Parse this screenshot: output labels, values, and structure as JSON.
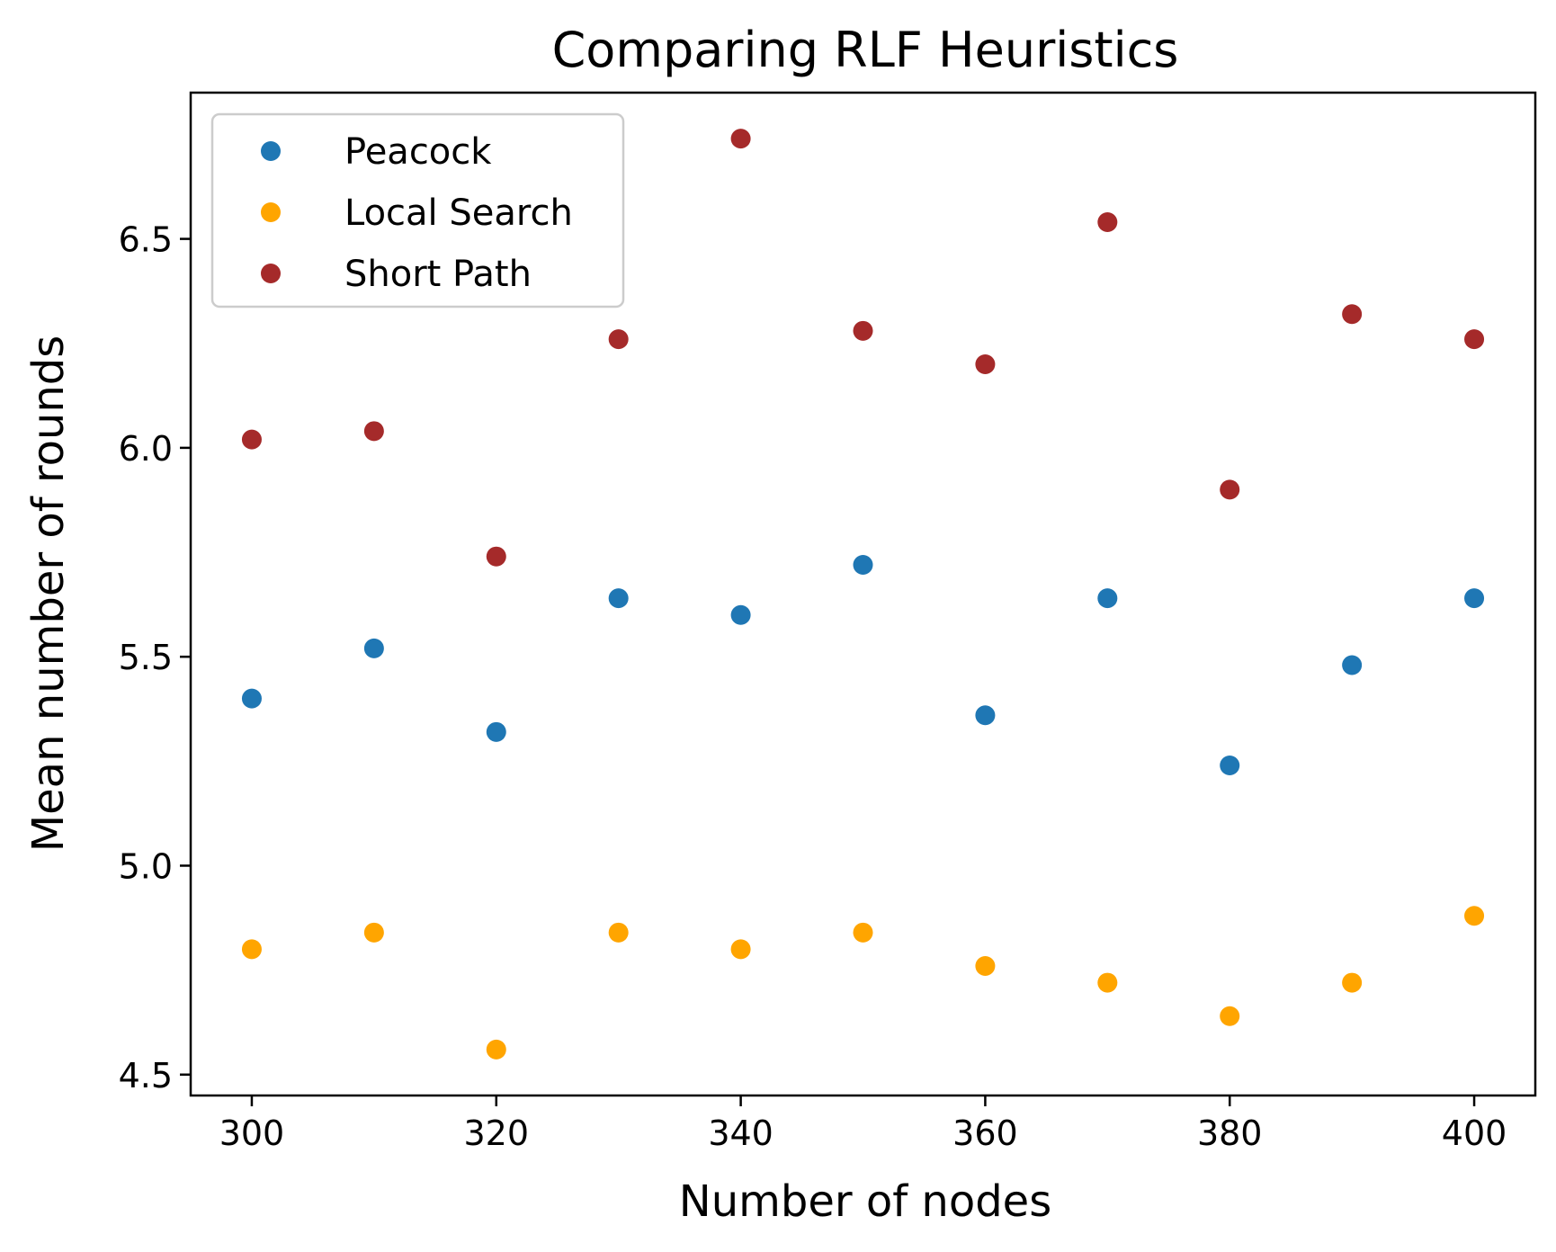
{
  "chart_data": {
    "type": "scatter",
    "title": "Comparing RLF Heuristics",
    "xlabel": "Number of nodes",
    "ylabel": "Mean number of rounds",
    "xlim": [
      295,
      405
    ],
    "ylim": [
      4.45,
      6.85
    ],
    "xticks": [
      300,
      320,
      340,
      360,
      380,
      400
    ],
    "xtick_labels": [
      "300",
      "320",
      "340",
      "360",
      "380",
      "400"
    ],
    "yticks": [
      4.5,
      5.0,
      5.5,
      6.0,
      6.5
    ],
    "ytick_labels": [
      "4.5",
      "5.0",
      "5.5",
      "6.0",
      "6.5"
    ],
    "grid": false,
    "legend_position": "top-left",
    "x": [
      300,
      310,
      320,
      330,
      340,
      350,
      360,
      370,
      380,
      390,
      400
    ],
    "series": [
      {
        "name": "Peacock",
        "color": "#1f77b4",
        "values": [
          5.4,
          5.52,
          5.32,
          5.64,
          5.6,
          5.72,
          5.36,
          5.64,
          5.24,
          5.48,
          5.64
        ]
      },
      {
        "name": "Local Search",
        "color": "#ffa500",
        "values": [
          4.8,
          4.84,
          4.56,
          4.84,
          4.8,
          4.84,
          4.76,
          4.72,
          4.64,
          4.72,
          4.88
        ]
      },
      {
        "name": "Short Path",
        "color": "#a52a2a",
        "values": [
          6.02,
          6.04,
          5.74,
          6.26,
          6.74,
          6.28,
          6.2,
          6.54,
          5.9,
          6.32,
          6.26
        ]
      }
    ]
  }
}
